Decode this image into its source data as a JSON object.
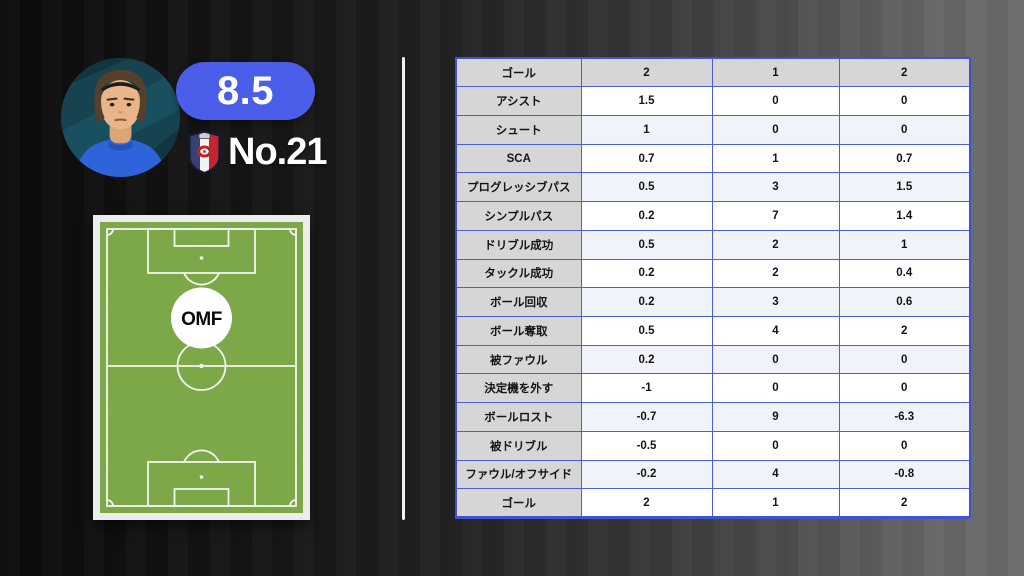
{
  "player": {
    "rating": "8.5",
    "shirt_number": "No.21",
    "position": "OMF"
  },
  "icons": {
    "avatar": "player-photo",
    "crest": "team-crest"
  },
  "colors": {
    "rating_badge": "#4a5eea",
    "table_border": "#4a5fd4",
    "label_cell_bg": "#d6d6d6",
    "band_tint_bg": "#f0f3fa",
    "pitch_green": "#76a43f",
    "background_left": "#0b0b0b",
    "background_right": "#6b6b6b"
  },
  "chart_data": {
    "type": "table",
    "legend_position": "none",
    "grid": true,
    "rows": [
      {
        "label": "ゴール",
        "values": [
          "2",
          "1",
          "2"
        ]
      },
      {
        "label": "アシスト",
        "values": [
          "1.5",
          "0",
          "0"
        ]
      },
      {
        "label": "シュート",
        "values": [
          "1",
          "0",
          "0"
        ]
      },
      {
        "label": "SCA",
        "values": [
          "0.7",
          "1",
          "0.7"
        ]
      },
      {
        "label": "プログレッシブパス",
        "values": [
          "0.5",
          "3",
          "1.5"
        ]
      },
      {
        "label": "シンプルパス",
        "values": [
          "0.2",
          "7",
          "1.4"
        ]
      },
      {
        "label": "ドリブル成功",
        "values": [
          "0.5",
          "2",
          "1"
        ]
      },
      {
        "label": "タックル成功",
        "values": [
          "0.2",
          "2",
          "0.4"
        ]
      },
      {
        "label": "ボール回収",
        "values": [
          "0.2",
          "3",
          "0.6"
        ]
      },
      {
        "label": "ボール奪取",
        "values": [
          "0.5",
          "4",
          "2"
        ]
      },
      {
        "label": "被ファウル",
        "values": [
          "0.2",
          "0",
          "0"
        ]
      },
      {
        "label": "決定機を外す",
        "values": [
          "-1",
          "0",
          "0"
        ]
      },
      {
        "label": "ボールロスト",
        "values": [
          "-0.7",
          "9",
          "-6.3"
        ]
      },
      {
        "label": "被ドリブル",
        "values": [
          "-0.5",
          "0",
          "0"
        ]
      },
      {
        "label": "ファウル/オフサイド",
        "values": [
          "-0.2",
          "4",
          "-0.8"
        ]
      },
      {
        "label": "ゴール",
        "values": [
          "2",
          "1",
          "2"
        ]
      }
    ]
  }
}
